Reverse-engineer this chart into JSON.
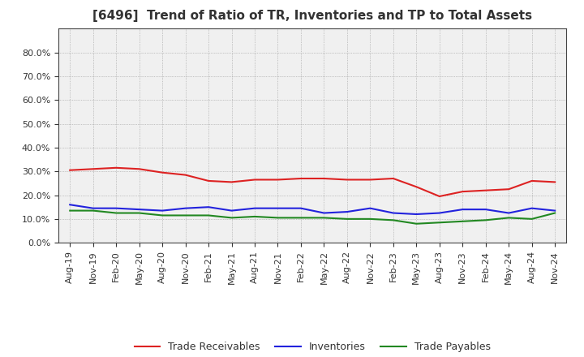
{
  "title": "[6496]  Trend of Ratio of TR, Inventories and TP to Total Assets",
  "x_labels": [
    "Aug-19",
    "Nov-19",
    "Feb-20",
    "May-20",
    "Aug-20",
    "Nov-20",
    "Feb-21",
    "May-21",
    "Aug-21",
    "Nov-21",
    "Feb-22",
    "May-22",
    "Aug-22",
    "Nov-22",
    "Feb-23",
    "May-23",
    "Aug-23",
    "Nov-23",
    "Feb-24",
    "May-24",
    "Aug-24",
    "Nov-24"
  ],
  "trade_receivables": [
    30.5,
    31.0,
    31.5,
    31.0,
    29.5,
    28.5,
    26.0,
    25.5,
    26.5,
    26.5,
    27.0,
    27.0,
    26.5,
    26.5,
    27.0,
    23.5,
    19.5,
    21.5,
    22.0,
    22.5,
    26.0,
    25.5
  ],
  "inventories": [
    16.0,
    14.5,
    14.5,
    14.0,
    13.5,
    14.5,
    15.0,
    13.5,
    14.5,
    14.5,
    14.5,
    12.5,
    13.0,
    14.5,
    12.5,
    12.0,
    12.5,
    14.0,
    14.0,
    12.5,
    14.5,
    13.5
  ],
  "trade_payables": [
    13.5,
    13.5,
    12.5,
    12.5,
    11.5,
    11.5,
    11.5,
    10.5,
    11.0,
    10.5,
    10.5,
    10.5,
    10.0,
    10.0,
    9.5,
    8.0,
    8.5,
    9.0,
    9.5,
    10.5,
    10.0,
    12.5
  ],
  "tr_color": "#dd2222",
  "inv_color": "#2222dd",
  "tp_color": "#228822",
  "background_color": "#ffffff",
  "plot_bg_color": "#f0f0f0",
  "grid_color": "#999999",
  "title_color": "#333333",
  "legend_labels": [
    "Trade Receivables",
    "Inventories",
    "Trade Payables"
  ],
  "title_fontsize": 11,
  "tick_fontsize": 8,
  "legend_fontsize": 9
}
